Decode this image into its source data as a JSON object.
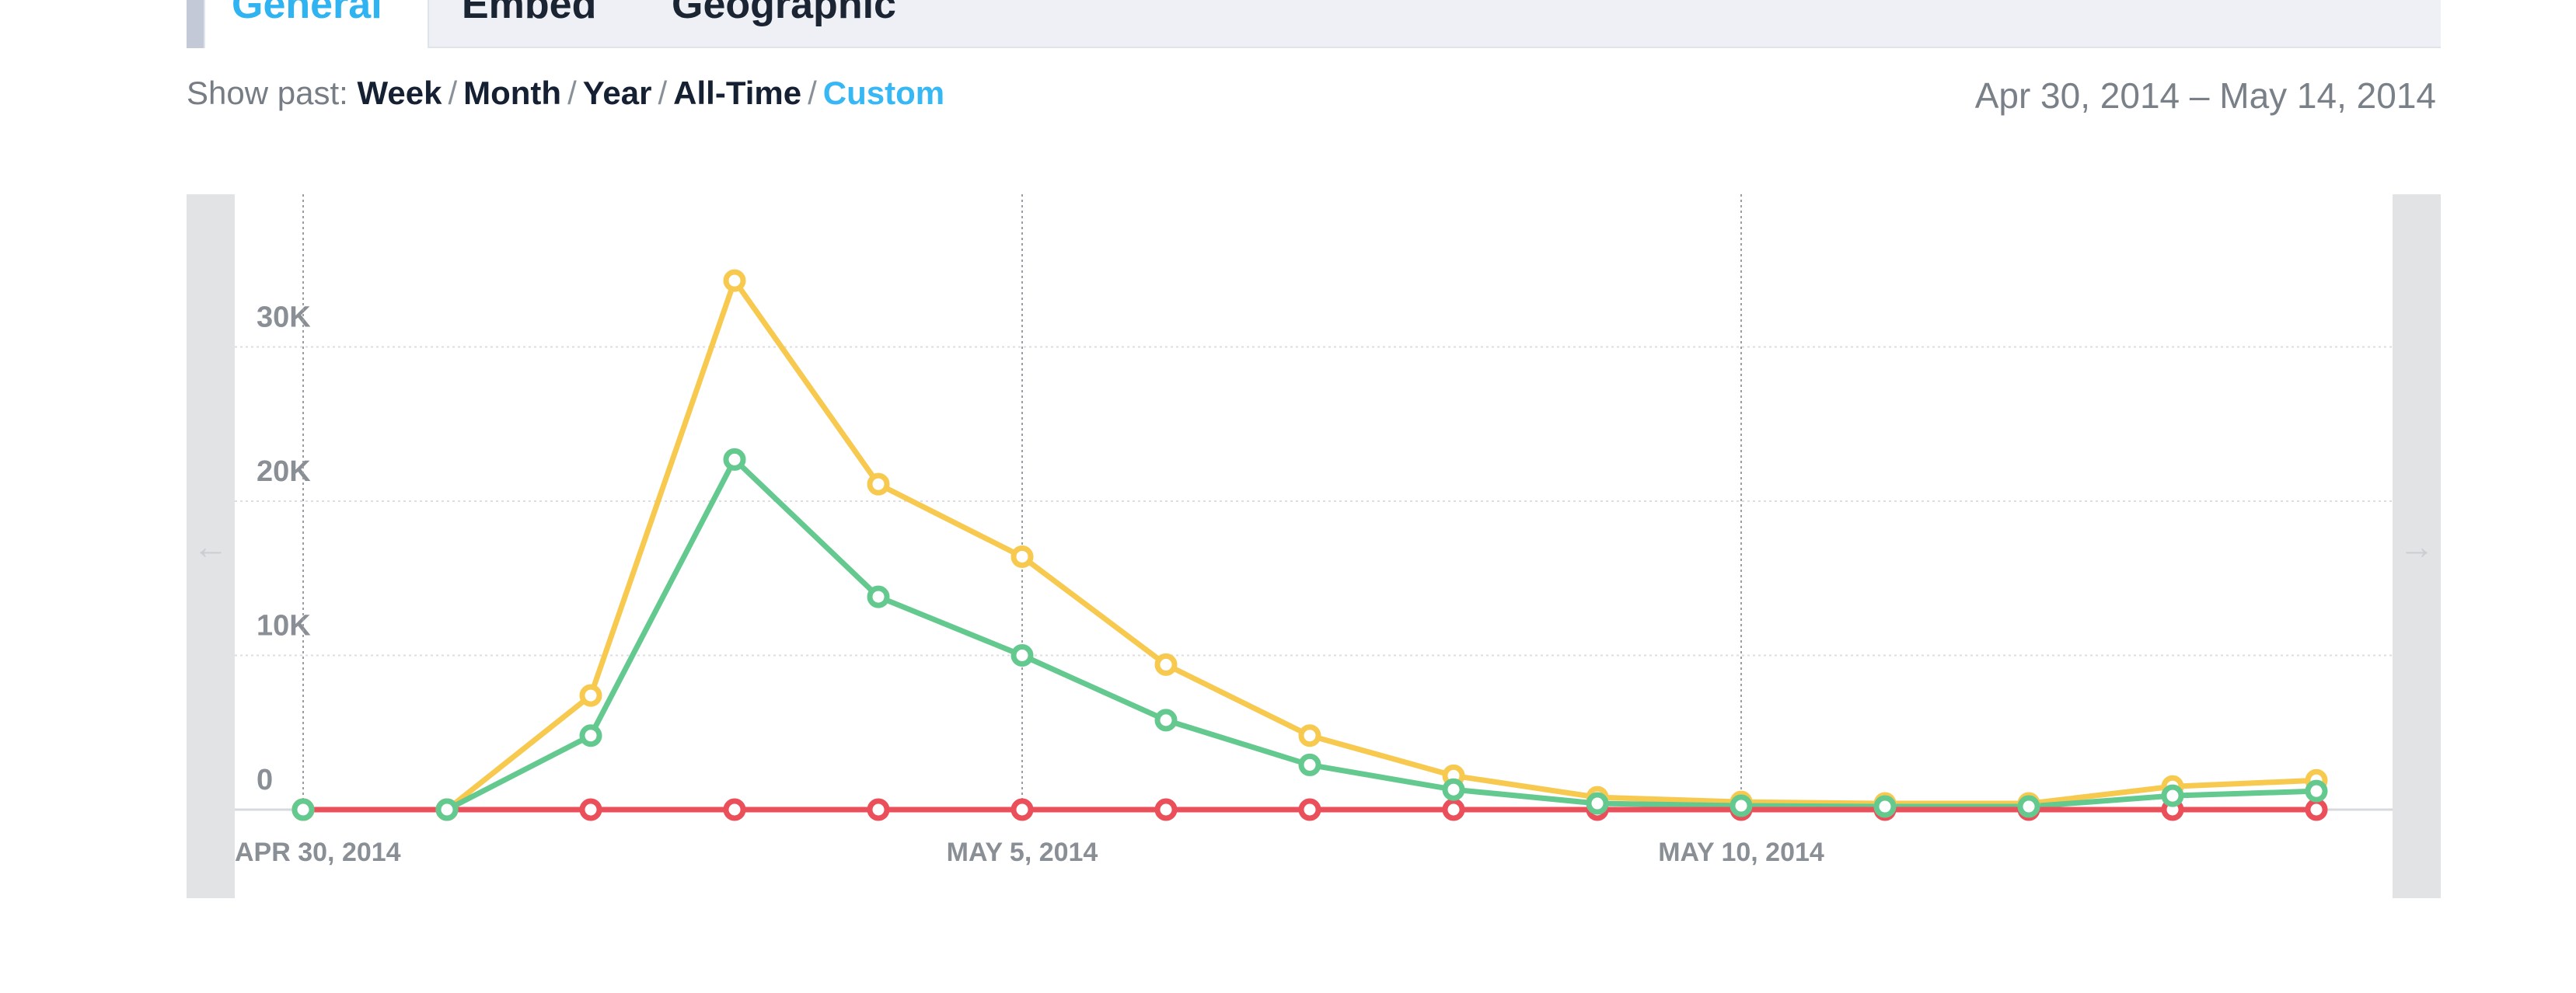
{
  "tabs": [
    {
      "label": "General",
      "active": true
    },
    {
      "label": "Embed",
      "active": false
    },
    {
      "label": "Geographic",
      "active": false
    }
  ],
  "range": {
    "prefix": "Show past:",
    "options": [
      "Week",
      "Month",
      "Year",
      "All-Time",
      "Custom"
    ],
    "selected": "Custom",
    "separator": "/"
  },
  "date_range": "Apr 30, 2014 – May 14, 2014",
  "nav": {
    "prev_icon": "arrow-left-icon",
    "next_icon": "arrow-right-icon",
    "prev_glyph": "←",
    "next_glyph": "→"
  },
  "colors": {
    "accent": "#37b8f4",
    "yellow": "#f7c94f",
    "green": "#64c98f",
    "red": "#ea4f5a"
  },
  "chart_data": {
    "type": "line",
    "x": [
      "2014-04-30",
      "2014-05-01",
      "2014-05-02",
      "2014-05-03",
      "2014-05-04",
      "2014-05-05",
      "2014-05-06",
      "2014-05-07",
      "2014-05-08",
      "2014-05-09",
      "2014-05-10",
      "2014-05-11",
      "2014-05-12",
      "2014-05-13",
      "2014-05-14"
    ],
    "x_tick_labels": [
      {
        "x": "2014-04-30",
        "label": "APR 30, 2014"
      },
      {
        "x": "2014-05-05",
        "label": "MAY 5, 2014"
      },
      {
        "x": "2014-05-10",
        "label": "MAY 10, 2014"
      }
    ],
    "y_ticks": [
      0,
      10000,
      20000,
      30000
    ],
    "y_tick_labels": [
      "0",
      "10K",
      "20K",
      "30K"
    ],
    "ylim": [
      0,
      37000
    ],
    "grid": true,
    "series": [
      {
        "color": "#f7c94f",
        "values": [
          0,
          0,
          7400,
          34300,
          21100,
          16400,
          9400,
          4800,
          2200,
          800,
          500,
          400,
          400,
          1500,
          1900
        ]
      },
      {
        "color": "#64c98f",
        "values": [
          0,
          0,
          4800,
          22700,
          13800,
          10000,
          5800,
          2900,
          1300,
          400,
          250,
          200,
          200,
          900,
          1200
        ]
      },
      {
        "color": "#ea4f5a",
        "values": [
          0,
          0,
          0,
          0,
          0,
          0,
          0,
          0,
          0,
          0,
          0,
          0,
          0,
          0,
          0
        ]
      }
    ]
  }
}
